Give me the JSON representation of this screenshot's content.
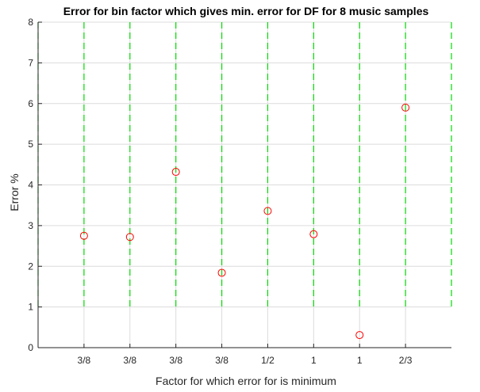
{
  "chart_data": {
    "type": "scatter",
    "title": "Error for bin factor which gives min. error for DF for 8 music samples",
    "xlabel": "Factor for which error for is minimum",
    "ylabel": "Error %",
    "categories": [
      "3/8",
      "3/8",
      "3/8",
      "3/8",
      "1/2",
      "1",
      "1",
      "2/3"
    ],
    "values": [
      2.75,
      2.72,
      4.32,
      1.84,
      3.36,
      2.79,
      0.31,
      5.9
    ],
    "ylim": [
      0,
      8
    ],
    "yticks": [
      "0",
      "1",
      "2",
      "3",
      "4",
      "5",
      "6",
      "7",
      "8"
    ],
    "grid": true,
    "marker": "circle-open",
    "colors": {
      "marker": "#ff0000",
      "vertical_lines": "#00dd00",
      "grid": "#dcdcdc",
      "axis": "#262626"
    }
  }
}
